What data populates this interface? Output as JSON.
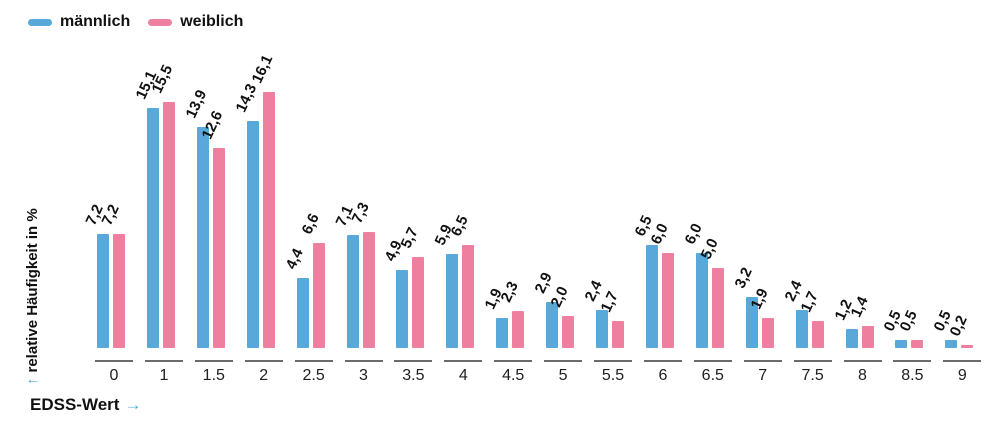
{
  "legend": {
    "items": [
      {
        "label": "männlich",
        "color": "#58a8da"
      },
      {
        "label": "weiblich",
        "color": "#ee7f9e"
      }
    ]
  },
  "y_axis": {
    "arrow": "↑",
    "label": "relative Häufigkeit in %"
  },
  "x_axis": {
    "label": "EDSS-Wert",
    "arrow": "→"
  },
  "colors": {
    "maennlich": "#58a8da",
    "weiblich": "#ee7f9e",
    "axis_line": "#6b6b6b",
    "text": "#111111"
  },
  "chart_data": {
    "type": "bar",
    "title": "",
    "categories": [
      "0",
      "1",
      "1.5",
      "2",
      "2.5",
      "3",
      "3.5",
      "4",
      "4.5",
      "5",
      "5.5",
      "6",
      "6.5",
      "7",
      "7.5",
      "8",
      "8.5",
      "9"
    ],
    "series": [
      {
        "name": "männlich",
        "color": "#58a8da",
        "values": [
          7.2,
          15.1,
          13.9,
          14.3,
          4.4,
          7.1,
          4.9,
          5.9,
          1.9,
          2.9,
          2.4,
          6.5,
          6.0,
          3.2,
          2.4,
          1.2,
          0.5,
          0.5
        ],
        "labels": [
          "7,2",
          "15,1",
          "13,9",
          "14,3",
          "4,4",
          "7,1",
          "4,9",
          "5,9",
          "1,9",
          "2,9",
          "2,4",
          "6,5",
          "6,0",
          "3,2",
          "2,4",
          "1,2",
          "0,5",
          "0,5"
        ]
      },
      {
        "name": "weiblich",
        "color": "#ee7f9e",
        "values": [
          7.2,
          15.5,
          12.6,
          16.1,
          6.6,
          7.3,
          5.7,
          6.5,
          2.3,
          2.0,
          1.7,
          6.0,
          5.0,
          1.9,
          1.7,
          1.4,
          0.5,
          0.2
        ],
        "labels": [
          "7,2",
          "15,5",
          "12,6",
          "16,1",
          "6,6",
          "7,3",
          "5,7",
          "6,5",
          "2,3",
          "2,0",
          "1,7",
          "6,0",
          "5,0",
          "1,9",
          "1,7",
          "1,4",
          "0,5",
          "0,2"
        ]
      }
    ],
    "xlabel": "EDSS-Wert",
    "ylabel": "relative Häufigkeit in %",
    "ylim": [
      0,
      16.5
    ],
    "value_format": "comma-decimal",
    "grid": false,
    "legend_position": "top-left"
  }
}
